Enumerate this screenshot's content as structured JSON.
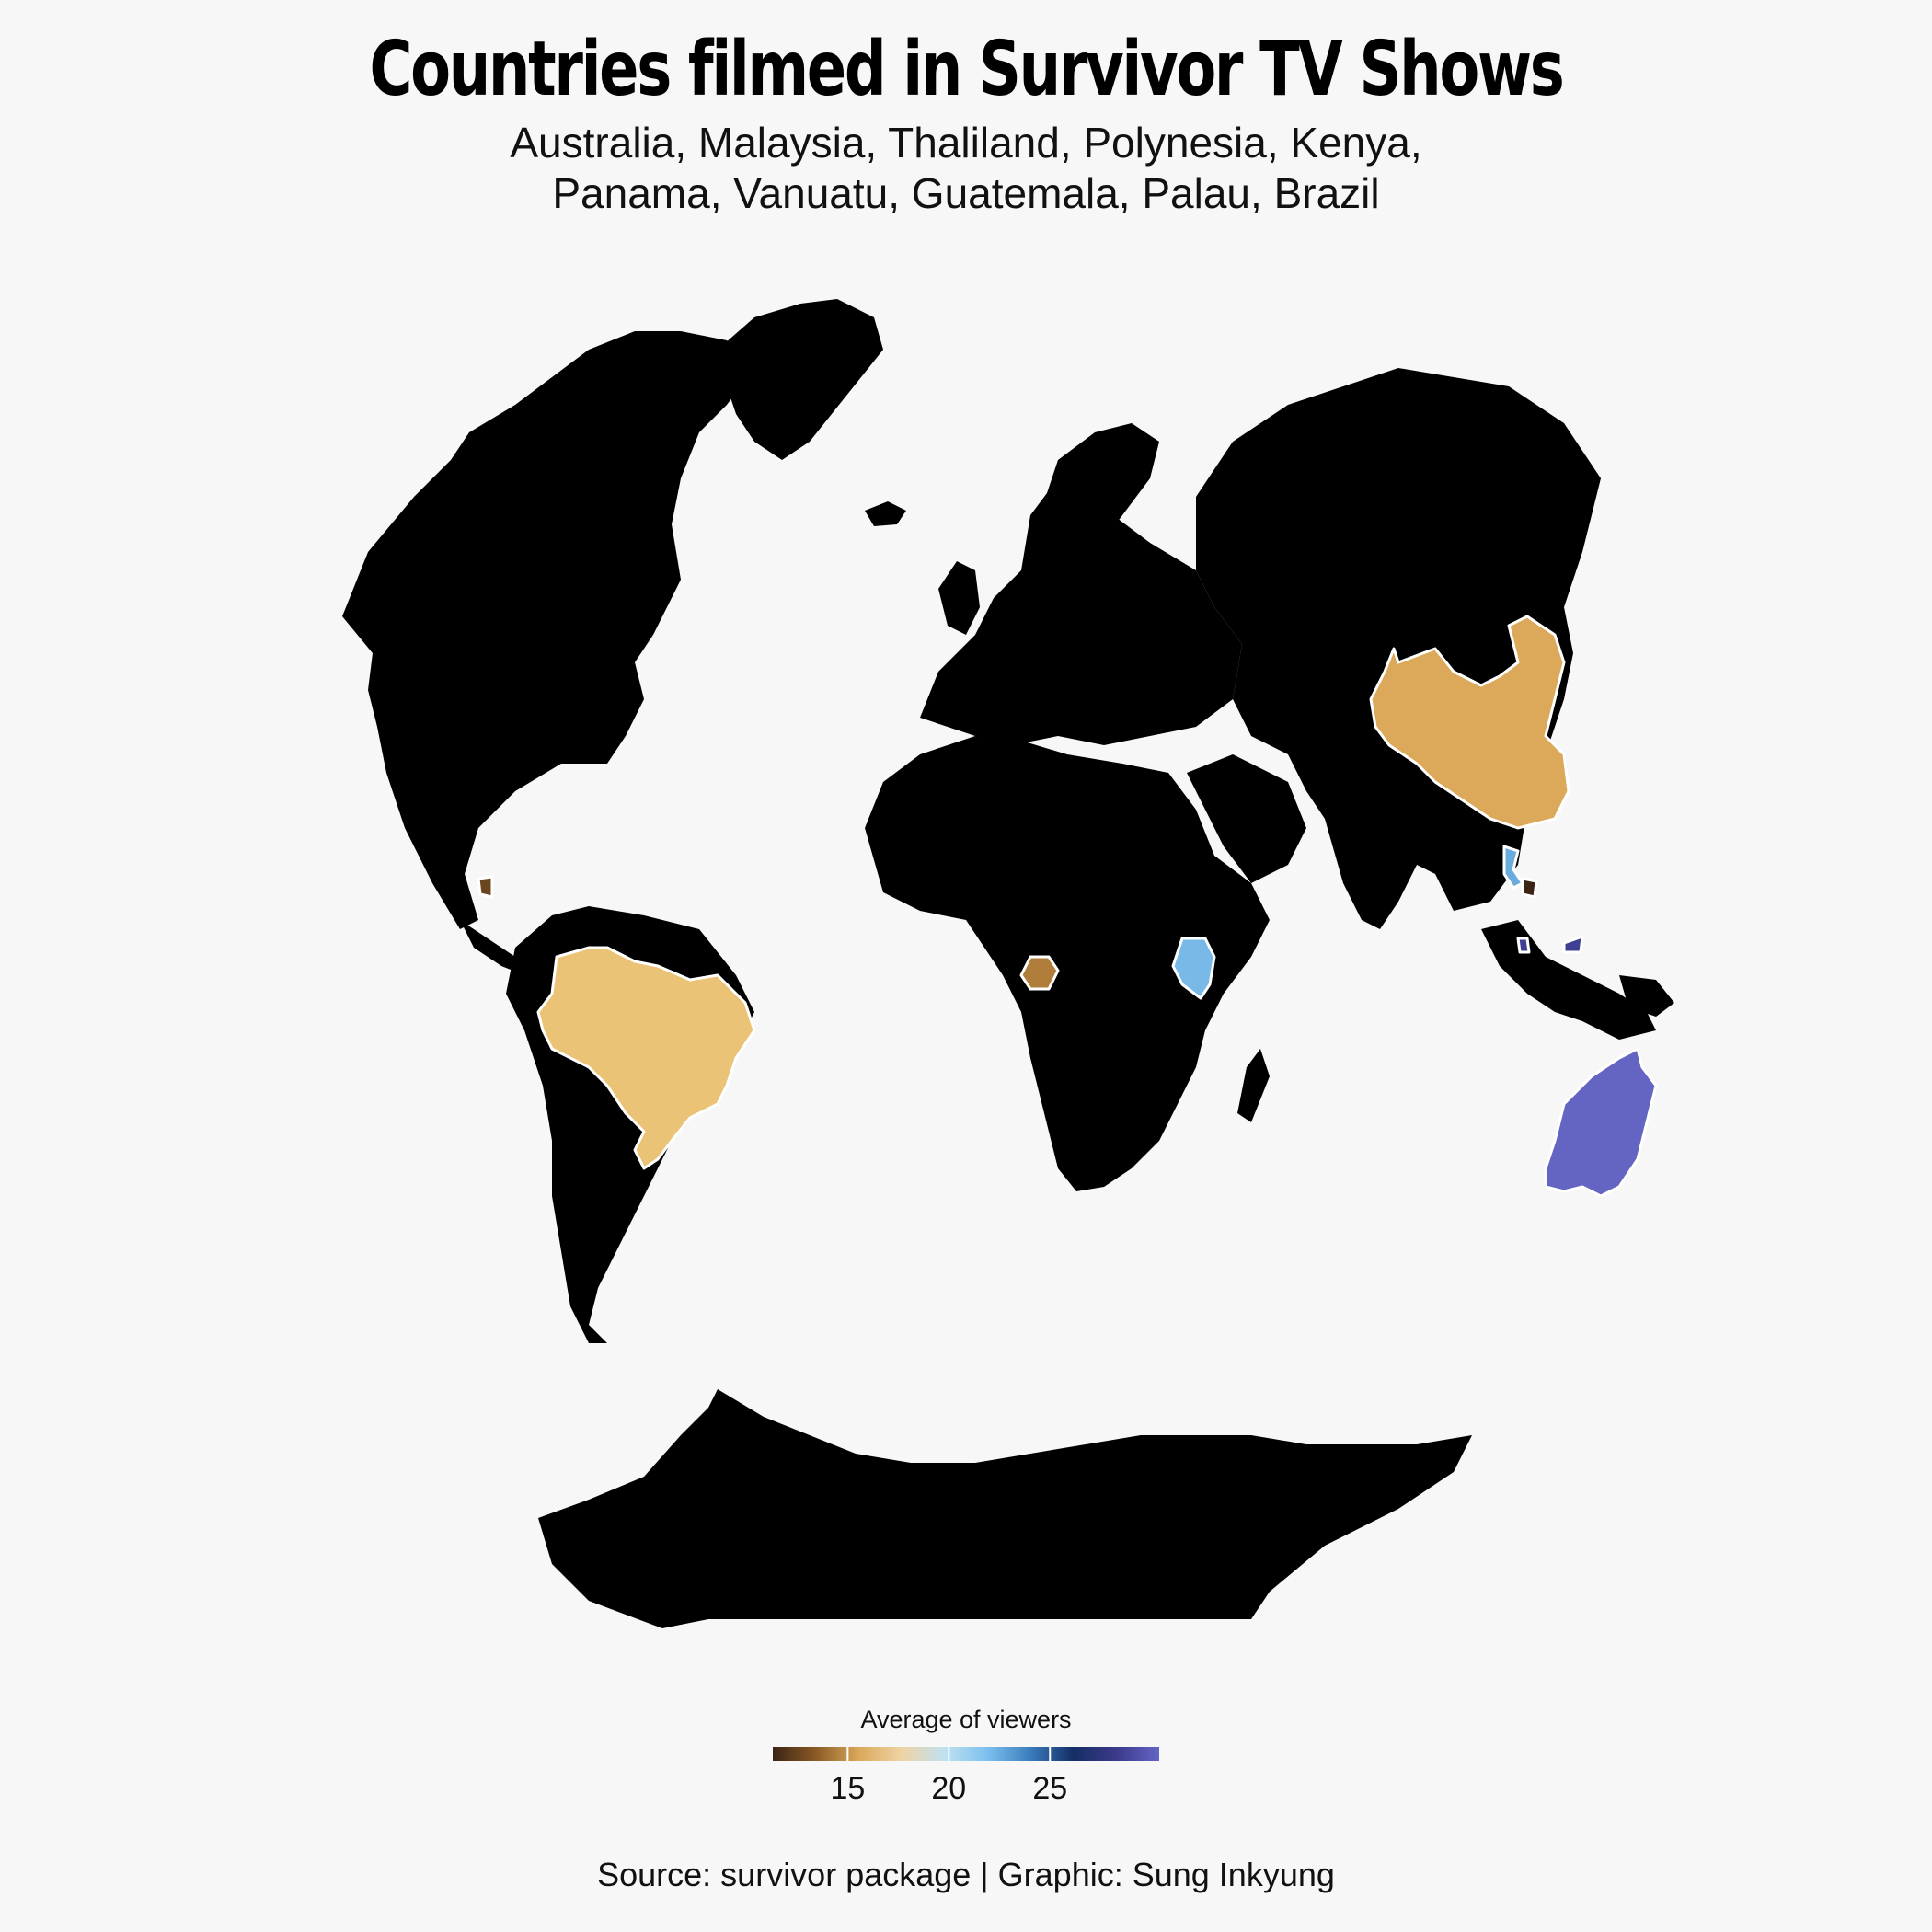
{
  "title": "Countries filmed in Survivor TV Shows",
  "subtitle_lines": [
    "Australia, Malaysia, Thaliland, Polynesia, Kenya,",
    "Panama, Vanuatu, Guatemala, Palau, Brazil"
  ],
  "source": "Source: survivor package | Graphic: Sung Inkyung",
  "colors": {
    "background": "#f7f7f7",
    "land": "#000000",
    "country_outline": "#ffffff"
  },
  "legend": {
    "title": "Average of viewers",
    "ticks": [
      15,
      20,
      25
    ],
    "range": [
      11.3,
      30.4
    ],
    "gradient_stops": [
      "#3b2415",
      "#8a5a26",
      "#d9a85a",
      "#f0d3a4",
      "#bfe1f0",
      "#7cc0ee",
      "#3a7dbd",
      "#152e66",
      "#3b3a8a",
      "#6464c6"
    ]
  },
  "chart_data": {
    "type": "choropleth",
    "projection": "orthographic-like world view",
    "highlighted_countries": [
      {
        "name": "Australia",
        "color": "#6465c2"
      },
      {
        "name": "China",
        "color": "#dca95a"
      },
      {
        "name": "Brazil",
        "color": "#ebc377"
      },
      {
        "name": "Kenya",
        "color": "#78b9e8"
      },
      {
        "name": "Gabon",
        "color": "#b07d3b"
      },
      {
        "name": "Thailand",
        "color": "#6aacdc"
      },
      {
        "name": "Cambodia",
        "color": "#3b2415"
      },
      {
        "name": "Nicaragua",
        "color": "#6b4520"
      },
      {
        "name": "Malaysia",
        "color": "#3f3f93"
      }
    ]
  }
}
